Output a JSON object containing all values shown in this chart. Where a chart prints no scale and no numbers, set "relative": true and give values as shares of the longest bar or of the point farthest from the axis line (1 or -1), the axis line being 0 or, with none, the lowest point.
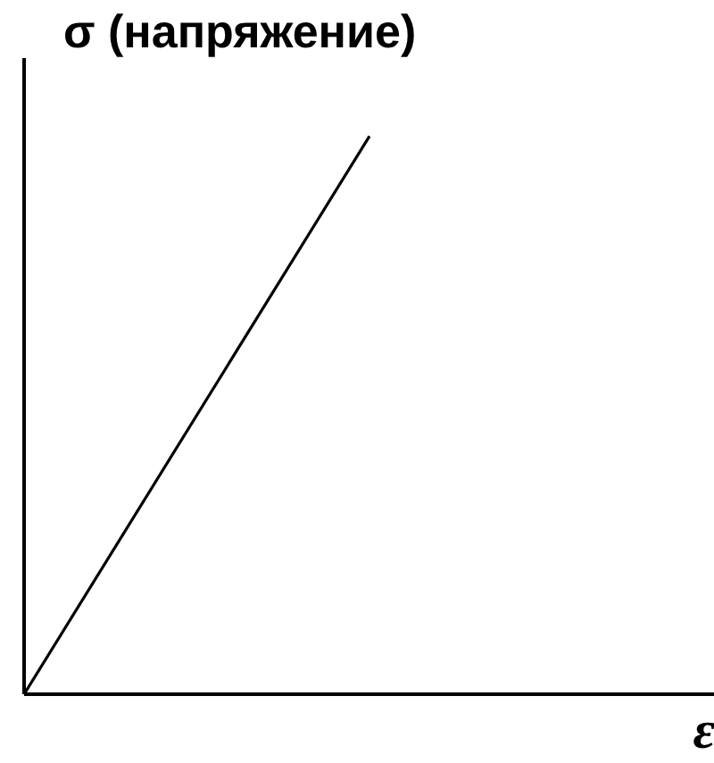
{
  "chart_data": {
    "type": "line",
    "ylabel": "σ (напряжение)",
    "xlabel": "ε",
    "categories": [
      null,
      null,
      null
    ],
    "values": [
      0,
      1,
      null
    ],
    "relative": true,
    "color": "#000000",
    "line_style": "solid"
  }
}
